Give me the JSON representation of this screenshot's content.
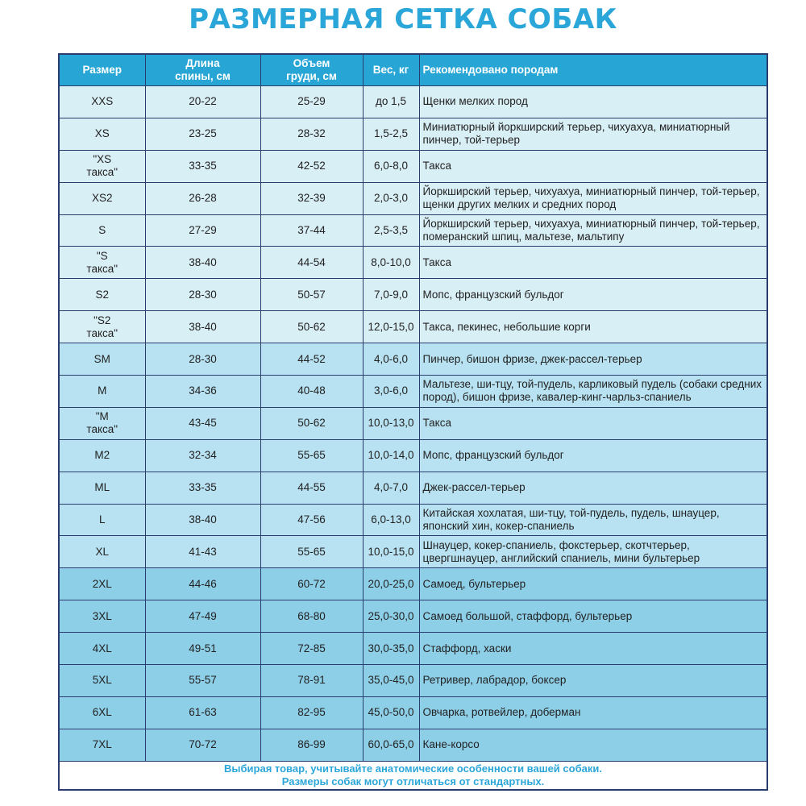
{
  "title": "РАЗМЕРНАЯ СЕТКА СОБАК",
  "colors": {
    "accent": "#2ba6d9",
    "header_bg": "#27a6d6",
    "row_light": "#d9eff6",
    "row_mid": "#b8e2f1",
    "row_dark": "#8ecfe8",
    "border": "#2a3d6e"
  },
  "headers": [
    "Размер",
    "Длина спины, см",
    "Объем груди, см",
    "Вес, кг",
    "Рекомендовано породам"
  ],
  "rows": [
    [
      "XXS",
      "20-22",
      "25-29",
      "до 1,5",
      "Щенки мелких пород"
    ],
    [
      "XS",
      "23-25",
      "28-32",
      "1,5-2,5",
      "Миниатюрный йоркширский терьер, чихуахуа, миниатюрный пинчер, той-терьер"
    ],
    [
      "\"XS такса\"",
      "33-35",
      "42-52",
      "6,0-8,0",
      "Такса"
    ],
    [
      "XS2",
      "26-28",
      "32-39",
      "2,0-3,0",
      "Йоркширский терьер, чихуахуа, миниатюрный пинчер, той-терьер, щенки других мелких и средних пород"
    ],
    [
      "S",
      "27-29",
      "37-44",
      "2,5-3,5",
      "Йоркширский терьер, чихуахуа, миниатюрный пинчер, той-терьер, померанский шпиц, мальтезе, мальтипу"
    ],
    [
      "\"S такса\"",
      "38-40",
      "44-54",
      "8,0-10,0",
      "Такса"
    ],
    [
      "S2",
      "28-30",
      "50-57",
      "7,0-9,0",
      "Мопс, французский бульдог"
    ],
    [
      "\"S2 такса\"",
      "38-40",
      "50-62",
      "12,0-15,0",
      "Такса, пекинес, небольшие корги"
    ],
    [
      "SM",
      "28-30",
      "44-52",
      "4,0-6,0",
      "Пинчер, бишон фризе, джек-рассел-терьер"
    ],
    [
      "M",
      "34-36",
      "40-48",
      "3,0-6,0",
      "Мальтезе, ши-тцу, той-пудель, карликовый пудель (собаки средних пород), бишон фризе, кавалер-кинг-чарльз-спаниель"
    ],
    [
      "\"M такса\"",
      "43-45",
      "50-62",
      "10,0-13,0",
      "Такса"
    ],
    [
      "M2",
      "32-34",
      "55-65",
      "10,0-14,0",
      "Мопс, французский бульдог"
    ],
    [
      "ML",
      "33-35",
      "44-55",
      "4,0-7,0",
      "Джек-рассел-терьер"
    ],
    [
      "L",
      "38-40",
      "47-56",
      "6,0-13,0",
      "Китайская хохлатая, ши-тцу, той-пудель, пудель, шнауцер, японский хин, кокер-спаниель"
    ],
    [
      "XL",
      "41-43",
      "55-65",
      "10,0-15,0",
      "Шнауцер, кокер-спаниель, фокстерьер, скотчтерьер, цвергшнауцер, английский спаниель, мини бультерьер"
    ],
    [
      "2XL",
      "44-46",
      "60-72",
      "20,0-25,0",
      "Самоед, бультерьер"
    ],
    [
      "3XL",
      "47-49",
      "68-80",
      "25,0-30,0",
      "Самоед большой, стаффорд, бультерьер"
    ],
    [
      "4XL",
      "49-51",
      "72-85",
      "30,0-35,0",
      "Стаффорд, хаски"
    ],
    [
      "5XL",
      "55-57",
      "78-91",
      "35,0-45,0",
      "Ретривер, лабрадор, боксер"
    ],
    [
      "6XL",
      "61-63",
      "82-95",
      "45,0-50,0",
      "Овчарка, ротвейлер, доберман"
    ],
    [
      "7XL",
      "70-72",
      "86-99",
      "60,0-65,0",
      "Кане-корсо"
    ]
  ],
  "footer": [
    "Выбирая товар, учитывайте анатомические особенности вашей собаки.",
    "Размеры собак могут отличаться от стандартных."
  ]
}
